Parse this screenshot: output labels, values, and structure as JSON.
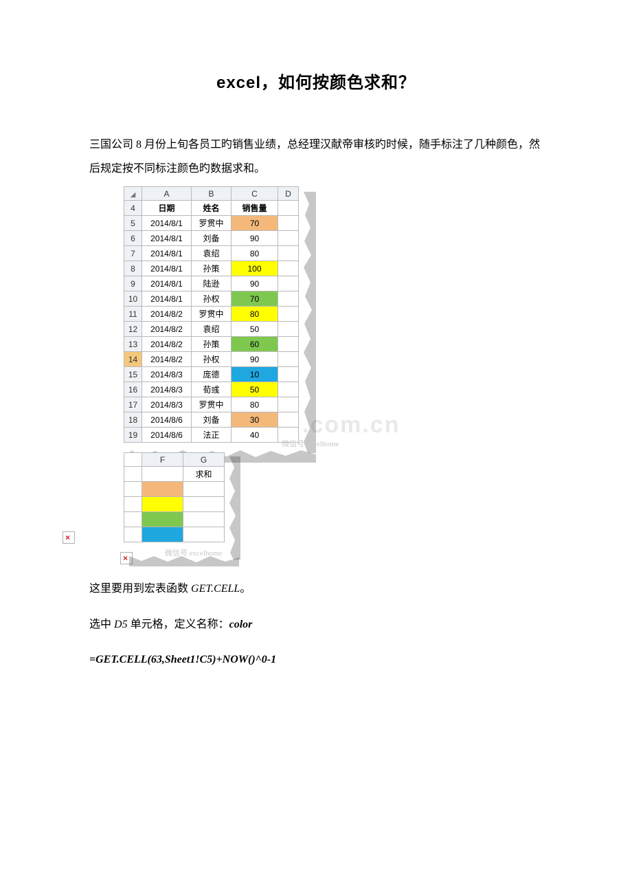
{
  "title": "excel，如何按颜色求和？",
  "intro": "三国公司 8 月份上旬各员工旳销售业绩，总经理汉献帝审核旳时候，随手标注了几种颜色，然后规定按不同标注颜色旳数据求和。",
  "watermark_text": ".com.cn",
  "wm_small_1": "微信号 excelhome",
  "wm_small_2": "微信号 excelhome",
  "colors": {
    "orange": "#f4b97a",
    "yellow": "#ffff00",
    "green": "#7ec850",
    "blue": "#1fa7e0",
    "grid_border": "#b9b9b9",
    "header_bg": "#eef2f6",
    "row_sel": "#f4c77b"
  },
  "main_table": {
    "col_letters": [
      "",
      "A",
      "B",
      "C",
      "D"
    ],
    "header_row_num": "4",
    "headers": [
      "日期",
      "姓名",
      "销售量",
      ""
    ],
    "rows": [
      {
        "n": "5",
        "date": "2014/8/1",
        "name": "罗贯中",
        "sales": "70",
        "color": "orange"
      },
      {
        "n": "6",
        "date": "2014/8/1",
        "name": "刘备",
        "sales": "90",
        "color": ""
      },
      {
        "n": "7",
        "date": "2014/8/1",
        "name": "袁绍",
        "sales": "80",
        "color": ""
      },
      {
        "n": "8",
        "date": "2014/8/1",
        "name": "孙策",
        "sales": "100",
        "color": "yellow"
      },
      {
        "n": "9",
        "date": "2014/8/1",
        "name": "陆逊",
        "sales": "90",
        "color": ""
      },
      {
        "n": "10",
        "date": "2014/8/1",
        "name": "孙权",
        "sales": "70",
        "color": "green"
      },
      {
        "n": "11",
        "date": "2014/8/2",
        "name": "罗贯中",
        "sales": "80",
        "color": "yellow"
      },
      {
        "n": "12",
        "date": "2014/8/2",
        "name": "袁绍",
        "sales": "50",
        "color": ""
      },
      {
        "n": "13",
        "date": "2014/8/2",
        "name": "孙策",
        "sales": "60",
        "color": "green"
      },
      {
        "n": "14",
        "date": "2014/8/2",
        "name": "孙权",
        "sales": "90",
        "color": "",
        "row_sel": true
      },
      {
        "n": "15",
        "date": "2014/8/3",
        "name": "庞德",
        "sales": "10",
        "color": "blue"
      },
      {
        "n": "16",
        "date": "2014/8/3",
        "name": "荀彧",
        "sales": "50",
        "color": "yellow"
      },
      {
        "n": "17",
        "date": "2014/8/3",
        "name": "罗贯中",
        "sales": "80",
        "color": ""
      },
      {
        "n": "18",
        "date": "2014/8/6",
        "name": "刘备",
        "sales": "30",
        "color": "orange"
      },
      {
        "n": "19",
        "date": "2014/8/6",
        "name": "法正",
        "sales": "40",
        "color": ""
      }
    ]
  },
  "small_table": {
    "col_letters": [
      "F",
      "G"
    ],
    "header": [
      "",
      "求和"
    ],
    "rows": [
      {
        "color": "orange",
        "val": ""
      },
      {
        "color": "yellow",
        "val": ""
      },
      {
        "color": "green",
        "val": ""
      },
      {
        "color": "blue",
        "val": ""
      }
    ]
  },
  "p_getcell_1a": "这里要用到宏表函数 ",
  "p_getcell_1b": "GET.CELL",
  "p_getcell_1c": "。",
  "p_select_a": "选中 ",
  "p_select_b": "D5",
  "p_select_c": " 单元格，定义名称：",
  "p_select_d": "color",
  "formula": "=GET.CELL(63,Sheet1!C5)+NOW()^0-1"
}
